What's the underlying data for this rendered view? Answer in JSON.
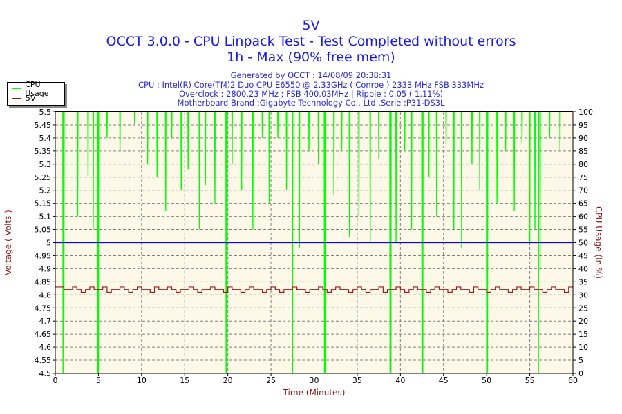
{
  "header": {
    "title": "5V",
    "subtitle": "OCCT 3.0.0 - CPU Linpack Test - Test Completed without errors",
    "subtitle2": "1h - Max (90% free mem)",
    "info": [
      "Generated by OCCT : 14/08/09 20:38:31",
      "CPU : Intel(R) Core(TM)2 Duo CPU E6550 @ 2.33GHz ( Conroe ) 2333 MHz FSB 333MHz",
      "Overclock : 2800.23 MHz ; FSB 400.03MHz | Ripple : 0.05 ( 1.11%)",
      "Motherboard Brand :Gigabyte Technology Co., Ltd.,Serie :P31-DS3L"
    ]
  },
  "legend": {
    "items": [
      {
        "label": "CPU Usage",
        "color": "#00ff00"
      },
      {
        "label": "5V",
        "color": "#8b1a1a"
      }
    ],
    "placement": "top-left"
  },
  "colors": {
    "plot_bg": "#fdf8e8",
    "grid": "#808080",
    "title": "#1a1ae6",
    "axis_label": "#8b1a1a",
    "reference": "#0000ff"
  },
  "chart_data": {
    "type": "line",
    "xlabel": "Time (Minutes)",
    "ylabel": "Voltage ( Volts )",
    "y2label": "CPU Usage (in %)",
    "xlim": [
      0,
      60
    ],
    "ylim": [
      4.5,
      5.5
    ],
    "y2lim": [
      0,
      100
    ],
    "grid": true,
    "x_ticks": [
      "0",
      "5",
      "10",
      "15",
      "20",
      "25",
      "30",
      "35",
      "40",
      "45",
      "50",
      "55",
      "60"
    ],
    "y_ticks": [
      "4.5",
      "4.55",
      "4.6",
      "4.65",
      "4.7",
      "4.75",
      "4.8",
      "4.85",
      "4.9",
      "4.95",
      "5",
      "5.05",
      "5.1",
      "5.15",
      "5.2",
      "5.25",
      "5.3",
      "5.35",
      "5.4",
      "5.45",
      "5.5"
    ],
    "y2_ticks": [
      "0",
      "5",
      "10",
      "15",
      "20",
      "25",
      "30",
      "35",
      "40",
      "45",
      "50",
      "55",
      "60",
      "65",
      "70",
      "75",
      "80",
      "85",
      "90",
      "95",
      "100"
    ],
    "reference_line": 5.0,
    "series": [
      {
        "name": "CPU Usage",
        "axis": "right",
        "baseline": 100,
        "dips": [
          [
            0.9,
            0
          ],
          [
            1.0,
            20
          ],
          [
            2.6,
            60
          ],
          [
            3.8,
            75
          ],
          [
            4.4,
            55
          ],
          [
            4.9,
            0
          ],
          [
            5.0,
            0
          ],
          [
            6.0,
            90
          ],
          [
            7.5,
            85
          ],
          [
            9.2,
            95
          ],
          [
            10.7,
            80
          ],
          [
            11.8,
            75
          ],
          [
            12.8,
            62
          ],
          [
            13.5,
            90
          ],
          [
            14.6,
            70
          ],
          [
            15.4,
            78
          ],
          [
            16.7,
            55
          ],
          [
            17.4,
            72
          ],
          [
            18.5,
            65
          ],
          [
            19.8,
            0
          ],
          [
            19.9,
            0
          ],
          [
            20.5,
            80
          ],
          [
            21.6,
            70
          ],
          [
            22.9,
            55
          ],
          [
            24.0,
            90
          ],
          [
            24.8,
            65
          ],
          [
            25.8,
            90
          ],
          [
            26.8,
            70
          ],
          [
            27.5,
            0
          ],
          [
            28.3,
            48
          ],
          [
            29.4,
            85
          ],
          [
            30.5,
            80
          ],
          [
            31.2,
            0
          ],
          [
            31.3,
            0
          ],
          [
            32.3,
            68
          ],
          [
            33.2,
            85
          ],
          [
            34.1,
            52
          ],
          [
            35.2,
            60
          ],
          [
            36.5,
            50
          ],
          [
            37.5,
            82
          ],
          [
            38.8,
            0
          ],
          [
            38.9,
            0
          ],
          [
            39.5,
            50
          ],
          [
            40.5,
            85
          ],
          [
            41.3,
            55
          ],
          [
            42.5,
            0
          ],
          [
            42.6,
            0
          ],
          [
            43.3,
            75
          ],
          [
            44.2,
            60
          ],
          [
            45.3,
            88
          ],
          [
            46.2,
            55
          ],
          [
            47.1,
            48
          ],
          [
            48.3,
            80
          ],
          [
            49.2,
            70
          ],
          [
            50.0,
            0
          ],
          [
            50.1,
            0
          ],
          [
            51.2,
            65
          ],
          [
            52.2,
            85
          ],
          [
            53.2,
            62
          ],
          [
            54.1,
            88
          ],
          [
            55.0,
            50
          ],
          [
            55.6,
            55
          ],
          [
            56.0,
            0
          ],
          [
            56.2,
            40
          ],
          [
            57.3,
            90
          ],
          [
            58.5,
            85
          ]
        ]
      },
      {
        "name": "5V",
        "axis": "left",
        "x_start": 0,
        "x_step": 0.5,
        "values": [
          4.83,
          4.83,
          4.82,
          4.82,
          4.83,
          4.82,
          4.81,
          4.82,
          4.83,
          4.82,
          4.82,
          4.83,
          4.81,
          4.82,
          4.82,
          4.83,
          4.82,
          4.81,
          4.82,
          4.83,
          4.82,
          4.82,
          4.81,
          4.83,
          4.82,
          4.82,
          4.83,
          4.82,
          4.81,
          4.82,
          4.82,
          4.83,
          4.82,
          4.81,
          4.82,
          4.82,
          4.83,
          4.82,
          4.82,
          4.81,
          4.83,
          4.82,
          4.82,
          4.81,
          4.82,
          4.83,
          4.82,
          4.82,
          4.81,
          4.82,
          4.83,
          4.82,
          4.81,
          4.82,
          4.82,
          4.83,
          4.82,
          4.82,
          4.81,
          4.82,
          4.82,
          4.83,
          4.82,
          4.81,
          4.82,
          4.83,
          4.82,
          4.82,
          4.81,
          4.82,
          4.83,
          4.82,
          4.81,
          4.82,
          4.82,
          4.83,
          4.81,
          4.82,
          4.82,
          4.83,
          4.82,
          4.81,
          4.82,
          4.83,
          4.82,
          4.82,
          4.81,
          4.82,
          4.83,
          4.82,
          4.82,
          4.81,
          4.82,
          4.83,
          4.82,
          4.82,
          4.81,
          4.83,
          4.82,
          4.82,
          4.81,
          4.82,
          4.83,
          4.82,
          4.82,
          4.81,
          4.82,
          4.83,
          4.82,
          4.82,
          4.83,
          4.82,
          4.82,
          4.81,
          4.82,
          4.83,
          4.82,
          4.82,
          4.81,
          4.83,
          4.83
        ]
      }
    ]
  }
}
